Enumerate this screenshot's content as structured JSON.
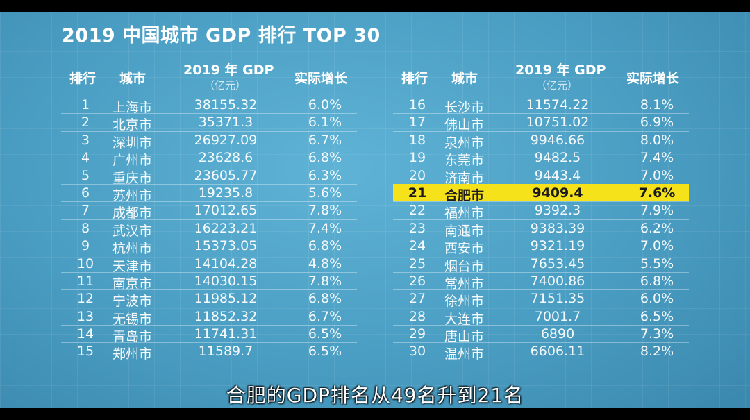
{
  "title": "2019 中国城市 GDP 排行 TOP 30",
  "headers": {
    "rank": "排行",
    "city": "城市",
    "gdp": "2019 年 GDP",
    "gdp_unit": "（亿元）",
    "growth": "实际增长"
  },
  "left_rows": [
    {
      "rank": "1",
      "city": "上海市",
      "gdp": "38155.32",
      "growth": "6.0%"
    },
    {
      "rank": "2",
      "city": "北京市",
      "gdp": "35371.3",
      "growth": "6.1%"
    },
    {
      "rank": "3",
      "city": "深圳市",
      "gdp": "26927.09",
      "growth": "6.7%"
    },
    {
      "rank": "4",
      "city": "广州市",
      "gdp": "23628.6",
      "growth": "6.8%"
    },
    {
      "rank": "5",
      "city": "重庆市",
      "gdp": "23605.77",
      "growth": "6.3%"
    },
    {
      "rank": "6",
      "city": "苏州市",
      "gdp": "19235.8",
      "growth": "5.6%"
    },
    {
      "rank": "7",
      "city": "成都市",
      "gdp": "17012.65",
      "growth": "7.8%"
    },
    {
      "rank": "8",
      "city": "武汉市",
      "gdp": "16223.21",
      "growth": "7.4%"
    },
    {
      "rank": "9",
      "city": "杭州市",
      "gdp": "15373.05",
      "growth": "6.8%"
    },
    {
      "rank": "10",
      "city": "天津市",
      "gdp": "14104.28",
      "growth": "4.8%"
    },
    {
      "rank": "11",
      "city": "南京市",
      "gdp": "14030.15",
      "growth": "7.8%"
    },
    {
      "rank": "12",
      "city": "宁波市",
      "gdp": "11985.12",
      "growth": "6.8%"
    },
    {
      "rank": "13",
      "city": "无锡市",
      "gdp": "11852.32",
      "growth": "6.7%"
    },
    {
      "rank": "14",
      "city": "青岛市",
      "gdp": "11741.31",
      "growth": "6.5%"
    },
    {
      "rank": "15",
      "city": "郑州市",
      "gdp": "11589.7",
      "growth": "6.5%"
    }
  ],
  "right_rows": [
    {
      "rank": "16",
      "city": "长沙市",
      "gdp": "11574.22",
      "growth": "8.1%"
    },
    {
      "rank": "17",
      "city": "佛山市",
      "gdp": "10751.02",
      "growth": "6.9%"
    },
    {
      "rank": "18",
      "city": "泉州市",
      "gdp": "9946.66",
      "growth": "8.0%"
    },
    {
      "rank": "19",
      "city": "东莞市",
      "gdp": "9482.5",
      "growth": "7.4%"
    },
    {
      "rank": "20",
      "city": "济南市",
      "gdp": "9443.4",
      "growth": "7.0%"
    },
    {
      "rank": "21",
      "city": "合肥市",
      "gdp": "9409.4",
      "growth": "7.6%",
      "highlight": true
    },
    {
      "rank": "22",
      "city": "福州市",
      "gdp": "9392.3",
      "growth": "7.9%"
    },
    {
      "rank": "23",
      "city": "南通市",
      "gdp": "9383.39",
      "growth": "6.2%"
    },
    {
      "rank": "24",
      "city": "西安市",
      "gdp": "9321.19",
      "growth": "7.0%"
    },
    {
      "rank": "25",
      "city": "烟台市",
      "gdp": "7653.45",
      "growth": "5.5%"
    },
    {
      "rank": "26",
      "city": "常州市",
      "gdp": "7400.86",
      "growth": "6.8%"
    },
    {
      "rank": "27",
      "city": "徐州市",
      "gdp": "7151.35",
      "growth": "6.0%"
    },
    {
      "rank": "28",
      "city": "大连市",
      "gdp": "7001.7",
      "growth": "6.5%"
    },
    {
      "rank": "29",
      "city": "唐山市",
      "gdp": "6890",
      "growth": "7.3%"
    },
    {
      "rank": "30",
      "city": "温州市",
      "gdp": "6606.11",
      "growth": "8.2%"
    }
  ],
  "subtitle": "合肥的GDP排名从49名升到21名",
  "colors": {
    "background": "#4ea3c7",
    "highlight": "#f5e21a",
    "text": "#ffffff"
  }
}
